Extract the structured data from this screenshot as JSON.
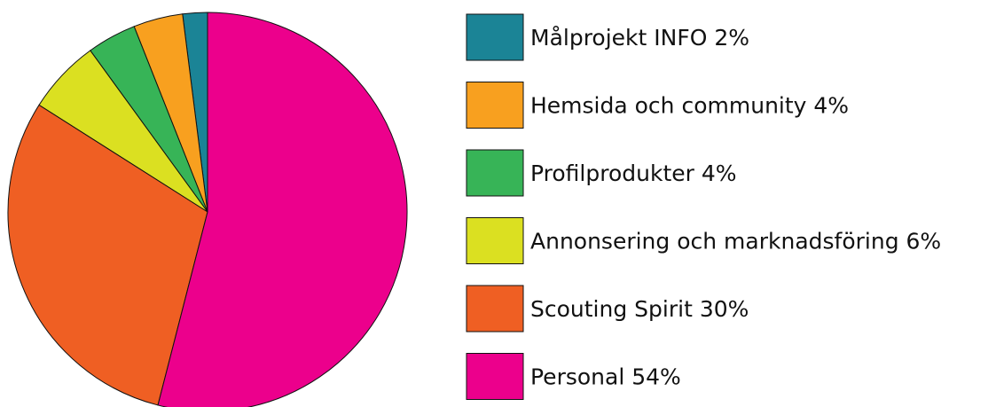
{
  "chart_data": {
    "type": "pie",
    "categories": [
      "Målprojekt INFO 2%",
      "Hemsida och community 4%",
      "Profilprodukter 4%",
      "Annonsering och marknadsföring 6%",
      "Scouting Spirit 30%",
      "Personal 54%"
    ],
    "values": [
      2,
      4,
      4,
      6,
      30,
      54
    ],
    "colors": [
      "#1b8496",
      "#f8a01f",
      "#37b457",
      "#dbe021",
      "#ef5f23",
      "#ec008c"
    ]
  }
}
